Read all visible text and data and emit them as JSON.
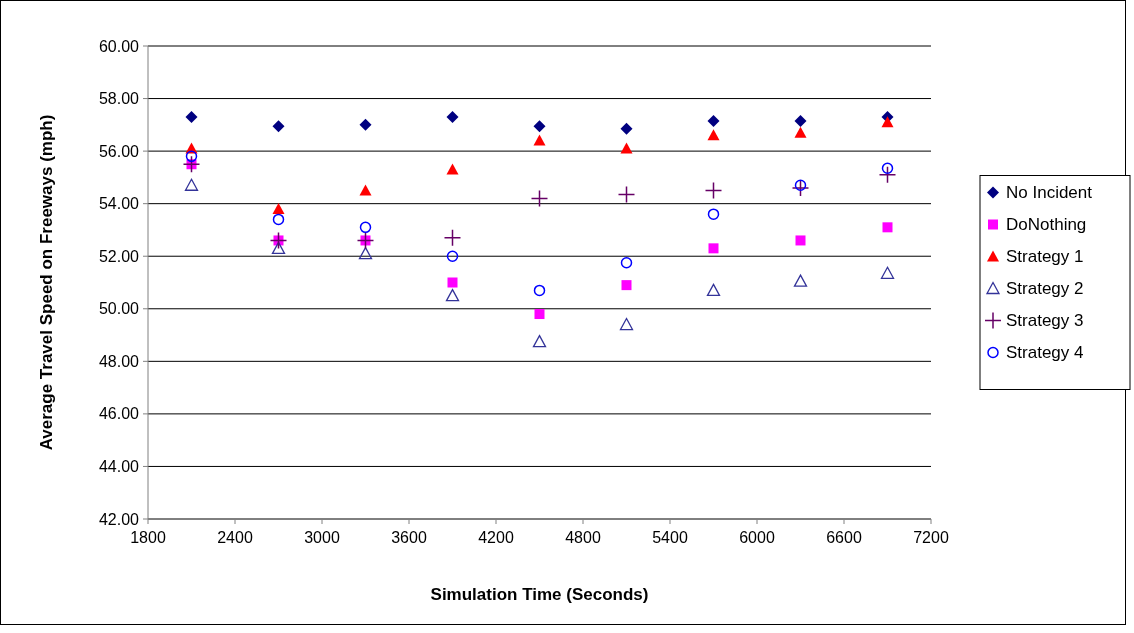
{
  "chart_data": {
    "type": "scatter",
    "xlabel": "Simulation Time (Seconds)",
    "ylabel": "Average Travel Speed on Freeways (mph)",
    "x": [
      2100,
      2700,
      3300,
      3900,
      4500,
      5100,
      5700,
      6300,
      6900
    ],
    "series": [
      {
        "name": "No Incident",
        "color": "#000080",
        "marker": "diamond",
        "values": [
          57.3,
          56.95,
          57.0,
          57.3,
          56.95,
          56.85,
          57.15,
          57.15,
          57.3
        ]
      },
      {
        "name": "DoNothing",
        "color": "#ff00ff",
        "marker": "square",
        "values": [
          55.5,
          52.6,
          52.6,
          51.0,
          49.8,
          50.9,
          52.3,
          52.6,
          53.1
        ]
      },
      {
        "name": "Strategy 1",
        "color": "#ff0000",
        "marker": "triangle",
        "values": [
          56.1,
          53.8,
          54.5,
          55.3,
          56.4,
          56.1,
          56.6,
          56.7,
          57.1
        ]
      },
      {
        "name": "Strategy 2",
        "color": "#333399",
        "marker": "triangle",
        "values": [
          54.7,
          52.3,
          52.1,
          50.5,
          48.75,
          49.4,
          50.7,
          51.05,
          51.35
        ]
      },
      {
        "name": "Strategy 3",
        "color": "#660066",
        "marker": "cross",
        "values": [
          55.5,
          52.6,
          52.6,
          52.7,
          54.2,
          54.35,
          54.5,
          54.6,
          55.1
        ]
      },
      {
        "name": "Strategy 4",
        "color": "#0000ff",
        "marker": "circle",
        "values": [
          55.8,
          53.4,
          53.1,
          52.0,
          50.7,
          51.75,
          53.6,
          54.7,
          55.35
        ]
      }
    ],
    "xlim": [
      1800,
      7200
    ],
    "xticks": [
      1800,
      2400,
      3000,
      3600,
      4200,
      4800,
      5400,
      6000,
      6600,
      7200
    ],
    "ylim": [
      42,
      60
    ],
    "yticks": [
      {
        "value": 42,
        "label": "42.00"
      },
      {
        "value": 44,
        "label": "44.00"
      },
      {
        "value": 46,
        "label": "46.00"
      },
      {
        "value": 48,
        "label": "48.00"
      },
      {
        "value": 50,
        "label": "50.00"
      },
      {
        "value": 52,
        "label": "52.00"
      },
      {
        "value": 54,
        "label": "54.00"
      },
      {
        "value": 56,
        "label": "56.00"
      },
      {
        "value": 58,
        "label": "58.00"
      },
      {
        "value": 60,
        "label": "60.00"
      }
    ],
    "grid": "y",
    "legend": "right"
  }
}
